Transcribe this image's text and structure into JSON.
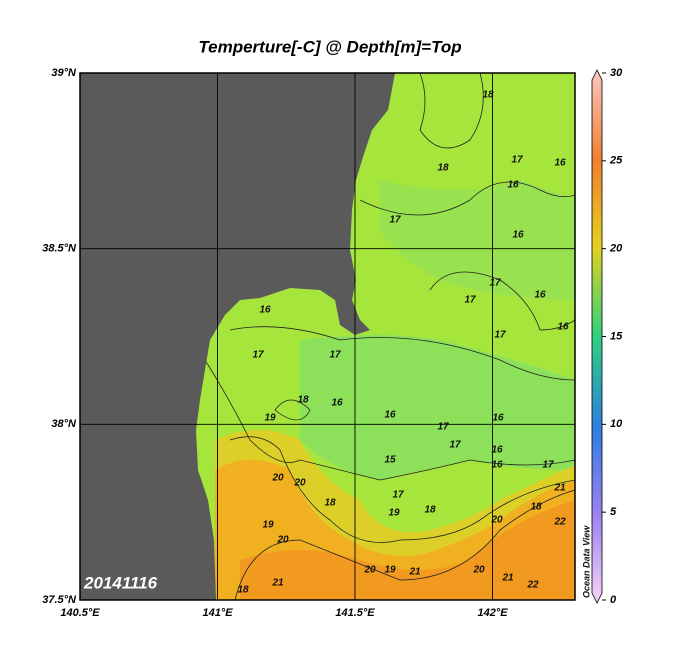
{
  "title": "Temperture[-C] @ Depth[m]=Top",
  "map": {
    "xlim": [
      140.5,
      142.3
    ],
    "ylim": [
      37.5,
      39
    ],
    "lon_ticks": [
      {
        "value": 140.5,
        "label": "140.5°E"
      },
      {
        "value": 141,
        "label": "141°E"
      },
      {
        "value": 141.5,
        "label": "141.5°E"
      },
      {
        "value": 142,
        "label": "142°E"
      }
    ],
    "lat_ticks": [
      {
        "value": 37.5,
        "label": "37.5°N"
      },
      {
        "value": 38,
        "label": "38°N"
      },
      {
        "value": 38.5,
        "label": "38.5°N"
      },
      {
        "value": 39,
        "label": "39°N"
      }
    ],
    "grid": true
  },
  "colorbar": {
    "lim": [
      0,
      30
    ],
    "ticks": [
      0,
      5,
      10,
      15,
      20,
      25,
      30
    ]
  },
  "date_label": "20141116",
  "watermark": "Ocean Data View",
  "contour_labels": [
    18,
    18,
    17,
    16,
    16,
    17,
    16,
    17,
    17,
    16,
    16,
    17,
    16,
    17,
    17,
    19,
    18,
    16,
    16,
    16,
    17,
    17,
    16,
    16,
    15,
    17,
    20,
    20,
    18,
    17,
    19,
    18,
    18,
    20,
    21,
    22,
    19,
    20,
    20,
    19,
    21,
    20,
    21,
    22,
    18,
    21
  ]
}
